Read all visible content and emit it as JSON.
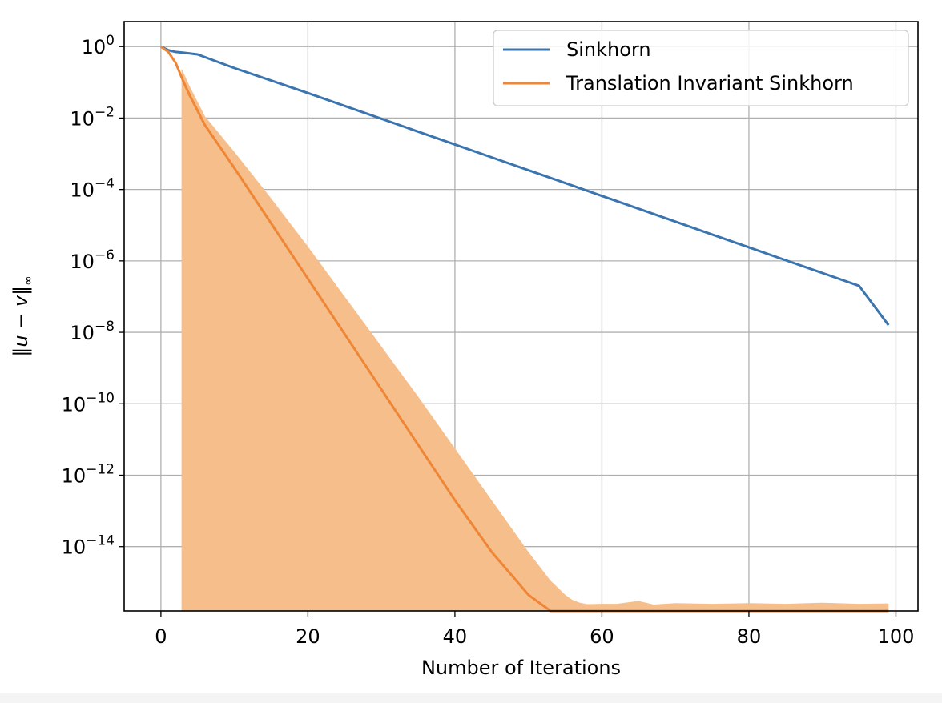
{
  "chart_data": {
    "type": "line",
    "title": "",
    "xlabel": "Number of Iterations",
    "ylabel": "||u − v||∞",
    "ylabel_parts": {
      "open": "‖",
      "u": "u",
      "minus": " − ",
      "v": "v",
      "close": "‖",
      "sub": "∞"
    },
    "xlim": [
      -5,
      103
    ],
    "ylim_log10": [
      -15.8,
      0.7
    ],
    "y_scale": "log",
    "grid": true,
    "legend_position": "top-right",
    "x_ticks": [
      0,
      20,
      40,
      60,
      80,
      100
    ],
    "x_tick_labels": [
      "0",
      "20",
      "40",
      "60",
      "80",
      "100"
    ],
    "y_ticks": [
      {
        "exp": 0,
        "base": "10",
        "label": "0"
      },
      {
        "exp": -2,
        "base": "10",
        "label": "−2"
      },
      {
        "exp": -4,
        "base": "10",
        "label": "−4"
      },
      {
        "exp": -6,
        "base": "10",
        "label": "−6"
      },
      {
        "exp": -8,
        "base": "10",
        "label": "−8"
      },
      {
        "exp": -10,
        "base": "10",
        "label": "−10"
      },
      {
        "exp": -12,
        "base": "10",
        "label": "−12"
      },
      {
        "exp": -14,
        "base": "10",
        "label": "−14"
      }
    ],
    "series": [
      {
        "name": "Sinkhorn",
        "color": "#3b75af",
        "x": [
          0,
          1,
          2,
          3,
          5,
          10,
          15,
          20,
          25,
          30,
          35,
          40,
          45,
          50,
          55,
          60,
          65,
          70,
          75,
          80,
          85,
          90,
          95,
          99
        ],
        "y_log10": [
          0.0,
          -0.1,
          -0.15,
          -0.17,
          -0.22,
          -0.6,
          -0.95,
          -1.3,
          -1.66,
          -2.02,
          -2.38,
          -2.74,
          -3.1,
          -3.46,
          -3.82,
          -4.18,
          -4.54,
          -4.9,
          -5.26,
          -5.62,
          -5.98,
          -6.34,
          -6.7,
          -7.8
        ]
      },
      {
        "name": "Translation Invariant Sinkhorn",
        "color": "#ef8636",
        "fill_color": "#f5be8a",
        "x": [
          0,
          1,
          2,
          3,
          4,
          5,
          6,
          8,
          10,
          15,
          20,
          25,
          30,
          35,
          40,
          45,
          50,
          53,
          55,
          56,
          57,
          58,
          60,
          62,
          65,
          67,
          70,
          75,
          80,
          85,
          90,
          95,
          99
        ],
        "y_log10": [
          0.0,
          -0.15,
          -0.45,
          -0.95,
          -1.4,
          -1.8,
          -2.2,
          -2.8,
          -3.4,
          -4.95,
          -6.5,
          -8.05,
          -9.6,
          -11.15,
          -12.7,
          -14.15,
          -15.35,
          -15.88,
          -16.05,
          -16.1,
          -16.12,
          -16.13,
          -16.14,
          -16.12,
          -16.1,
          -16.14,
          -16.11,
          -16.12,
          -16.12,
          -16.1,
          -16.11,
          -16.1,
          -16.1
        ],
        "band_upper_log10": [
          0.0,
          -0.1,
          -0.3,
          -0.7,
          -1.15,
          -1.55,
          -1.95,
          -2.45,
          -2.95,
          -4.25,
          -5.6,
          -7.0,
          -8.4,
          -9.8,
          -11.25,
          -12.7,
          -14.15,
          -14.95,
          -15.35,
          -15.49,
          -15.57,
          -15.61,
          -15.6,
          -15.6,
          -15.52,
          -15.62,
          -15.58,
          -15.6,
          -15.58,
          -15.6,
          -15.57,
          -15.6,
          -15.59
        ],
        "band_start_x": 2.8
      }
    ]
  }
}
